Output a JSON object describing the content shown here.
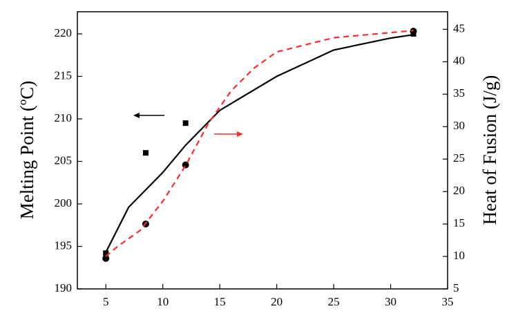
{
  "chart_data": {
    "type": "scatter",
    "y_label": "Melting Point (ºC)",
    "y2_label": "Heat of Fusion (J/g)",
    "xlim": [
      2.5,
      35
    ],
    "xticks": [
      5,
      10,
      15,
      20,
      25,
      30,
      35
    ],
    "ylim": [
      190,
      222.6
    ],
    "yticks": [
      190,
      195,
      200,
      205,
      210,
      215,
      220
    ],
    "y2lim": [
      5,
      47.7
    ],
    "y2ticks": [
      5,
      10,
      15,
      20,
      25,
      30,
      35,
      40,
      45
    ],
    "series": [
      {
        "kind": "marker",
        "marker": "square",
        "color": "#000000",
        "x": [
          5,
          8.5,
          12,
          32
        ],
        "values": [
          194.2,
          206,
          209.5,
          220
        ]
      },
      {
        "kind": "line",
        "dash": false,
        "color": "#000000",
        "x": [
          5,
          7,
          10,
          12,
          15,
          17,
          20,
          25,
          30,
          32
        ],
        "values": [
          194.3,
          199.6,
          203.7,
          206.9,
          211,
          212.6,
          215,
          218.1,
          219.5,
          219.9
        ]
      },
      {
        "kind": "marker",
        "marker": "circle",
        "color": "#000000",
        "axis": "y2",
        "x": [
          5,
          8.5,
          12,
          32
        ],
        "values": [
          9.7,
          15,
          24.1,
          44.7
        ]
      },
      {
        "kind": "line",
        "dash": true,
        "color": "#ff2a2a",
        "axis": "y2",
        "x": [
          5,
          6,
          8,
          10,
          12,
          14,
          16,
          18,
          20,
          25,
          32
        ],
        "values": [
          10,
          11.5,
          14,
          18.5,
          24,
          30.5,
          35.5,
          39,
          41.5,
          43.7,
          44.8
        ]
      }
    ]
  }
}
